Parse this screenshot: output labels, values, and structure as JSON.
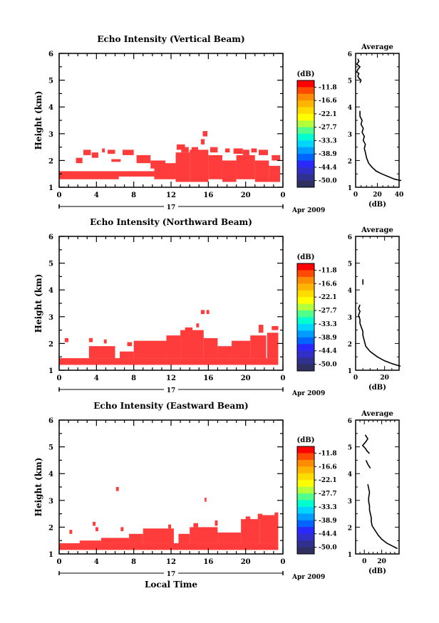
{
  "colorbar": {
    "unit": "(dB)",
    "labels": [
      "-11.8",
      "-16.6",
      "-22.1",
      "-27.7",
      "-33.3",
      "-38.9",
      "-44.4",
      "-50.0"
    ],
    "colors": [
      "#ff0000",
      "#ff4a00",
      "#ff8c00",
      "#ffb400",
      "#ffdc00",
      "#ffff00",
      "#b4ff3c",
      "#50ff8c",
      "#00ffd0",
      "#00d4ff",
      "#009cff",
      "#0064ff",
      "#2828ff",
      "#3030c8",
      "#303090",
      "#303060"
    ]
  },
  "timebar": {
    "day_label": "17",
    "month_label": "Apr 2009"
  },
  "x_axis_label": "Local Time",
  "chart_data": [
    {
      "type": "heatmap",
      "title": "Echo Intensity (Vertical Beam)",
      "ylabel": "Height (km)",
      "xlim": [
        0,
        24
      ],
      "ylim": [
        1,
        6
      ],
      "xticks": [
        "0",
        "4",
        "8",
        "12",
        "16",
        "20",
        "0"
      ],
      "yticks": [
        "1",
        "2",
        "3",
        "4",
        "5",
        "6"
      ],
      "color": "#ff3c3c",
      "cells": [
        [
          0,
          6,
          1.3,
          1.5
        ],
        [
          6,
          6.4,
          1.3,
          1.4
        ],
        [
          0,
          10.2,
          1.4,
          1.6
        ],
        [
          10.2,
          12.5,
          1.3,
          1.9
        ],
        [
          12.5,
          14,
          1.2,
          2.3
        ],
        [
          14,
          16,
          1.2,
          2.4
        ],
        [
          16,
          17.5,
          1.3,
          2.2
        ],
        [
          17.5,
          19,
          1.2,
          2
        ],
        [
          19,
          21,
          1.3,
          2.2
        ],
        [
          21,
          22.5,
          1.2,
          2
        ],
        [
          22.5,
          23.7,
          1.2,
          1.8
        ],
        [
          1.8,
          2.5,
          1.9,
          2.1
        ],
        [
          2.6,
          3.4,
          2.2,
          2.4
        ],
        [
          3.5,
          4.2,
          2.1,
          2.3
        ],
        [
          4.6,
          4.9,
          2.3,
          2.45
        ],
        [
          5.2,
          6,
          2.25,
          2.4
        ],
        [
          5.6,
          6.6,
          1.95,
          2.05
        ],
        [
          6.8,
          8,
          2.2,
          2.4
        ],
        [
          8.3,
          9.8,
          1.9,
          2.2
        ],
        [
          7.6,
          8.1,
          1.4,
          1.6
        ],
        [
          9.8,
          11.4,
          1.7,
          2
        ],
        [
          12.6,
          13.5,
          2.4,
          2.6
        ],
        [
          13.1,
          13.9,
          2.3,
          2.5
        ],
        [
          14.2,
          14.9,
          2.3,
          2.5
        ],
        [
          15.4,
          15.9,
          2.9,
          3.1
        ],
        [
          15.2,
          15.6,
          2.6,
          2.8
        ],
        [
          16.2,
          17,
          2.3,
          2.5
        ],
        [
          17.8,
          18.3,
          2.3,
          2.45
        ],
        [
          18.7,
          19.7,
          2.25,
          2.45
        ],
        [
          19.7,
          20.4,
          2.2,
          2.4
        ],
        [
          20.6,
          21.2,
          2.3,
          2.45
        ],
        [
          21.4,
          22.4,
          2.2,
          2.4
        ],
        [
          22.8,
          23.7,
          2,
          2.2
        ]
      ],
      "average": {
        "xlim": [
          0,
          40
        ],
        "xticks": [
          "0",
          "20",
          "40"
        ],
        "xlabel": "(dB)",
        "title": "Average",
        "x": [
          42,
          36,
          30,
          24,
          19,
          15,
          12,
          10,
          9,
          8,
          9,
          7,
          8,
          6,
          7,
          5,
          6,
          4,
          4,
          5,
          4,
          5,
          3,
          2,
          3,
          1,
          2,
          4,
          1,
          3,
          2
        ],
        "y": [
          1.25,
          1.3,
          1.4,
          1.5,
          1.6,
          1.75,
          1.9,
          2.1,
          2.3,
          2.45,
          2.6,
          2.75,
          2.9,
          3.05,
          3.2,
          3.35,
          3.5,
          3.65,
          3.85,
          null,
          4.9,
          5.0,
          5.08,
          5.15,
          5.25,
          5.3,
          5.4,
          5.5,
          5.6,
          5.7,
          5.8
        ]
      }
    },
    {
      "type": "heatmap",
      "title": "Echo Intensity (Northward Beam)",
      "ylabel": "Height (km)",
      "xlim": [
        0,
        24
      ],
      "ylim": [
        1,
        6
      ],
      "xticks": [
        "0",
        "4",
        "8",
        "12",
        "16",
        "20",
        "0"
      ],
      "yticks": [
        "1",
        "2",
        "3",
        "4",
        "5",
        "6"
      ],
      "color": "#ff3c3c",
      "cells": [
        [
          0,
          23.5,
          1.2,
          1.45
        ],
        [
          3.2,
          6,
          1.45,
          1.9
        ],
        [
          6.5,
          8,
          1.45,
          1.7
        ],
        [
          8,
          11.5,
          1.45,
          2.1
        ],
        [
          11.5,
          13,
          1.45,
          2.3
        ],
        [
          13,
          15.5,
          1.45,
          2.5
        ],
        [
          15.5,
          17,
          1.45,
          2.2
        ],
        [
          17,
          18.5,
          1.45,
          1.9
        ],
        [
          18.5,
          20.5,
          1.45,
          2.1
        ],
        [
          20.5,
          22.2,
          1.45,
          2.3
        ],
        [
          22.3,
          23.5,
          1.45,
          2.4
        ],
        [
          0.6,
          1,
          2.05,
          2.2
        ],
        [
          3.2,
          3.6,
          2.05,
          2.2
        ],
        [
          4.8,
          5.1,
          2,
          2.15
        ],
        [
          7.3,
          7.8,
          1.9,
          2.05
        ],
        [
          13.5,
          14.3,
          2.45,
          2.6
        ],
        [
          14.7,
          15,
          2.6,
          2.75
        ],
        [
          15.2,
          15.6,
          3.1,
          3.25
        ],
        [
          15.8,
          16.1,
          3.1,
          3.25
        ],
        [
          21.4,
          21.9,
          2.4,
          2.7
        ],
        [
          22.8,
          23.5,
          2.5,
          2.65
        ]
      ],
      "average": {
        "xlim": [
          0,
          30
        ],
        "xticks": [
          "0",
          "20"
        ],
        "xlabel": "(dB)",
        "title": "Average",
        "x": [
          31,
          25,
          20,
          15,
          10,
          7,
          6,
          5,
          5,
          4,
          3,
          3,
          2,
          3,
          2,
          3,
          null,
          5,
          5,
          5
        ],
        "y": [
          1.15,
          1.25,
          1.35,
          1.5,
          1.7,
          1.9,
          2.1,
          2.3,
          2.45,
          2.6,
          2.75,
          2.9,
          3.05,
          3.2,
          3.3,
          3.45,
          null,
          4.2,
          4.3,
          4.4
        ]
      }
    },
    {
      "type": "heatmap",
      "title": "Echo Intensity (Eastward Beam)",
      "ylabel": "Height (km)",
      "xlim": [
        0,
        24
      ],
      "ylim": [
        1,
        6
      ],
      "xticks": [
        "0",
        "4",
        "8",
        "12",
        "16",
        "20",
        "0"
      ],
      "yticks": [
        "1",
        "2",
        "3",
        "4",
        "5",
        "6"
      ],
      "color": "#ff3c3c",
      "cells": [
        [
          0,
          23.5,
          1.15,
          1.4
        ],
        [
          2.2,
          4.5,
          1.4,
          1.5
        ],
        [
          4.5,
          7.5,
          1.4,
          1.6
        ],
        [
          7.5,
          9,
          1.4,
          1.75
        ],
        [
          9,
          12.3,
          1.4,
          1.95
        ],
        [
          12.8,
          14,
          1.4,
          1.75
        ],
        [
          14,
          17,
          1.4,
          2
        ],
        [
          17,
          19.5,
          1.4,
          1.8
        ],
        [
          19.5,
          21.5,
          1.4,
          2.3
        ],
        [
          21.5,
          23.5,
          1.4,
          2.45
        ],
        [
          1.1,
          1.4,
          1.75,
          1.9
        ],
        [
          3.6,
          3.9,
          2.05,
          2.2
        ],
        [
          3.9,
          4.2,
          1.85,
          2
        ],
        [
          6.1,
          6.4,
          3.35,
          3.5
        ],
        [
          6.6,
          6.9,
          1.85,
          2
        ],
        [
          11.7,
          12,
          1.95,
          2.1
        ],
        [
          14.4,
          14.9,
          2,
          2.15
        ],
        [
          16.7,
          17,
          2.05,
          2.25
        ],
        [
          20,
          20.5,
          2.25,
          2.4
        ],
        [
          21.3,
          21.8,
          2.3,
          2.5
        ],
        [
          22.3,
          22.8,
          2.25,
          2.4
        ],
        [
          23.1,
          23.5,
          2.4,
          2.55
        ],
        [
          15.6,
          15.8,
          2.95,
          3.1
        ]
      ],
      "average": {
        "xlim": [
          -10,
          40
        ],
        "xticks": [
          "0",
          "20"
        ],
        "xlabel": "(dB)",
        "title": "Average",
        "x": [
          38,
          32,
          26,
          20,
          16,
          12,
          9,
          8,
          8,
          7,
          6,
          6,
          5,
          5,
          6,
          4,
          null,
          7,
          4,
          2,
          null,
          6,
          3,
          1,
          -2,
          2,
          4,
          1
        ],
        "y": [
          1.2,
          1.3,
          1.4,
          1.55,
          1.7,
          1.9,
          2.05,
          2.2,
          2.35,
          2.5,
          2.65,
          2.8,
          2.95,
          3.1,
          3.3,
          3.6,
          null,
          4.2,
          4.35,
          4.5,
          null,
          4.75,
          4.85,
          4.95,
          5.05,
          5.2,
          5.3,
          5.45
        ]
      }
    }
  ]
}
